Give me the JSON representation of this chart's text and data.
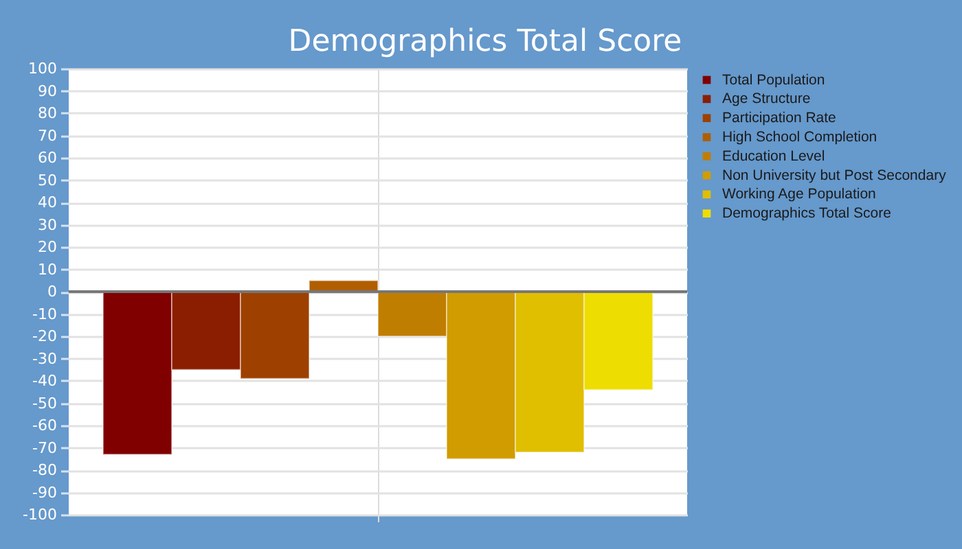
{
  "chart_data": {
    "type": "bar",
    "title": "Demographics Total Score",
    "categories": [
      null
    ],
    "series": [
      {
        "name": "Total Population",
        "color": "#800000",
        "values": [
          -73
        ]
      },
      {
        "name": "Age Structure",
        "color": "#8b1e00",
        "values": [
          -35
        ]
      },
      {
        "name": "Participation Rate",
        "color": "#9e4000",
        "values": [
          -39
        ]
      },
      {
        "name": "High School Completion",
        "color": "#b05e00",
        "values": [
          5
        ]
      },
      {
        "name": "Education Level",
        "color": "#c07e00",
        "values": [
          -20
        ]
      },
      {
        "name": "Non University but Post Secondary",
        "color": "#d09c00",
        "values": [
          -75
        ]
      },
      {
        "name": "Working Age Population",
        "color": "#e0be00",
        "values": [
          -72
        ]
      },
      {
        "name": "Demographics Total Score",
        "color": "#eedd00",
        "values": [
          -44
        ]
      }
    ],
    "ylim": [
      -100,
      100
    ],
    "yticks": [
      -100,
      -90,
      -80,
      -70,
      -60,
      -50,
      -40,
      -30,
      -20,
      -10,
      0,
      10,
      20,
      30,
      40,
      50,
      60,
      70,
      80,
      90,
      100
    ],
    "grid": true,
    "legend": "right",
    "tick_labels": "y",
    "ref_lines": [
      {
        "axis": "y",
        "value": 0,
        "color": "#777777"
      }
    ]
  }
}
